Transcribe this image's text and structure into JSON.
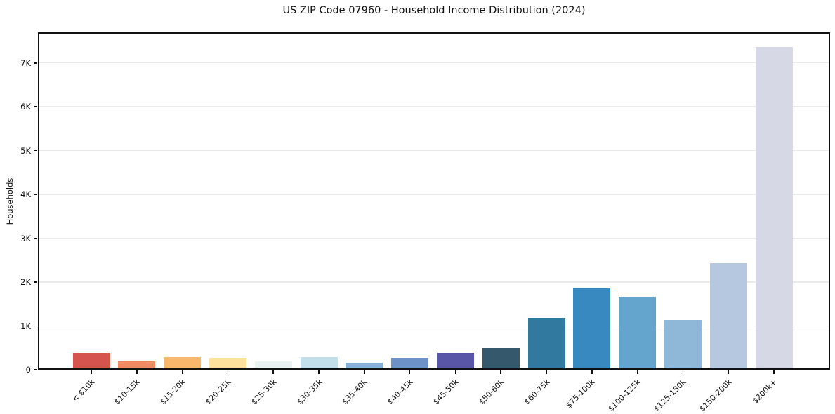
{
  "figure": {
    "title": "US ZIP Code 07960 - Household Income Distribution (2024)",
    "background_color": "#ffffff",
    "axis_color": "#111111",
    "gridline_color": "#ebebeb"
  },
  "chart_data": {
    "type": "bar",
    "title": "US ZIP Code 07960 - Household Income Distribution (2024)",
    "xlabel": "",
    "ylabel": "Households",
    "grid": "horizontal-only",
    "legend": "none",
    "categories": [
      "< $10k",
      "$10-15k",
      "$15-20k",
      "$20-25k",
      "$25-30k",
      "$30-35k",
      "$35-40k",
      "$40-45k",
      "$45-50k",
      "$50-60k",
      "$60-75k",
      "$75-100k",
      "$100-125k",
      "$125-150k",
      "$150-200k",
      "$200k+"
    ],
    "values": [
      385,
      200,
      290,
      280,
      185,
      285,
      160,
      280,
      380,
      490,
      1190,
      1850,
      1660,
      1130,
      2430,
      7360
    ],
    "bar_colors": [
      "#d6544e",
      "#ef8a62",
      "#f9b76c",
      "#fde29e",
      "#e9f3f1",
      "#c2e0ec",
      "#87b1d6",
      "#6d92c8",
      "#5a56a7",
      "#36586c",
      "#32799f",
      "#3789c0",
      "#64a5cd",
      "#8fb8d8",
      "#b6c8e0",
      "#d7d8e6"
    ],
    "ytick_labels": [
      "0",
      "1K",
      "2K",
      "3K",
      "4K",
      "5K",
      "6K",
      "7K"
    ],
    "ytick_values": [
      0,
      1000,
      2000,
      3000,
      4000,
      5000,
      6000,
      7000
    ],
    "ylim": [
      0,
      7700
    ]
  }
}
